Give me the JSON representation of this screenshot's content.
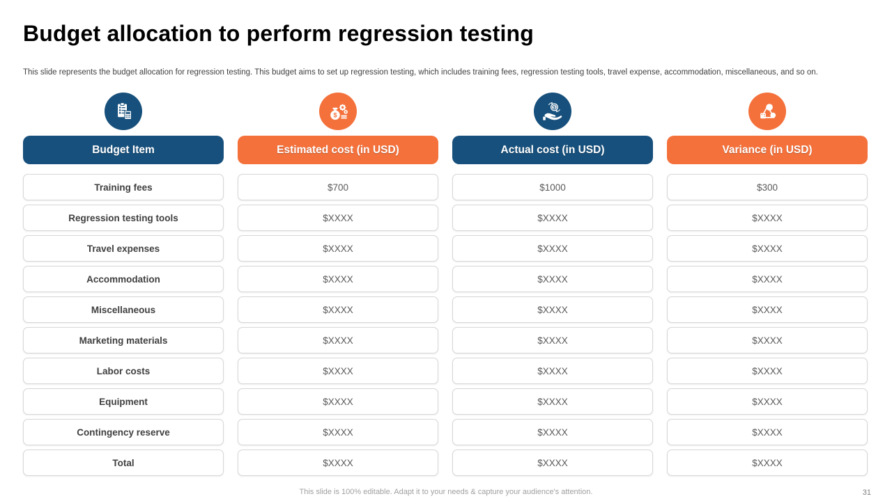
{
  "slide": {
    "title": "Budget allocation to perform regression testing",
    "subtitle": "This slide represents the budget allocation for regression testing. This budget aims to set up regression testing, which includes training fees, regression testing tools, travel expense, accommodation, miscellaneous, and so on.",
    "footer": "This slide is 100% editable. Adapt it to your needs & capture your audience's attention.",
    "page_number": "31"
  },
  "colors": {
    "dark_blue": "#17507C",
    "orange": "#F4713B"
  },
  "table": {
    "columns": [
      {
        "label": "Budget Item",
        "icon": "clipboard-calculator-icon",
        "color": "blue"
      },
      {
        "label": "Estimated cost (in USD)",
        "icon": "money-bag-gears-icon",
        "color": "orange"
      },
      {
        "label": "Actual cost (in USD)",
        "icon": "hand-coin-icon",
        "color": "blue"
      },
      {
        "label": "Variance (in USD)",
        "icon": "shapes-variance-icon",
        "color": "orange"
      }
    ],
    "rows": [
      {
        "item": "Training fees",
        "estimated": "$700",
        "actual": "$1000",
        "variance": "$300"
      },
      {
        "item": "Regression testing tools",
        "estimated": "$XXXX",
        "actual": "$XXXX",
        "variance": "$XXXX"
      },
      {
        "item": "Travel expenses",
        "estimated": "$XXXX",
        "actual": "$XXXX",
        "variance": "$XXXX"
      },
      {
        "item": "Accommodation",
        "estimated": "$XXXX",
        "actual": "$XXXX",
        "variance": "$XXXX"
      },
      {
        "item": "Miscellaneous",
        "estimated": "$XXXX",
        "actual": "$XXXX",
        "variance": "$XXXX"
      },
      {
        "item": "Marketing materials",
        "estimated": "$XXXX",
        "actual": "$XXXX",
        "variance": "$XXXX"
      },
      {
        "item": "Labor costs",
        "estimated": "$XXXX",
        "actual": "$XXXX",
        "variance": "$XXXX"
      },
      {
        "item": "Equipment",
        "estimated": "$XXXX",
        "actual": "$XXXX",
        "variance": "$XXXX"
      },
      {
        "item": "Contingency reserve",
        "estimated": "$XXXX",
        "actual": "$XXXX",
        "variance": "$XXXX"
      },
      {
        "item": "Total",
        "estimated": "$XXXX",
        "actual": "$XXXX",
        "variance": "$XXXX"
      }
    ]
  }
}
